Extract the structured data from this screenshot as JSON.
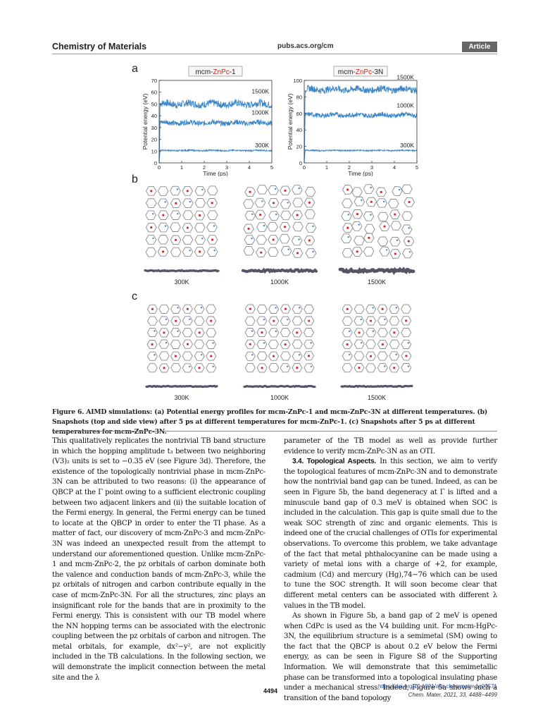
{
  "header": {
    "journal": "Chemistry of Materials",
    "url": "pubs.acs.org/cm",
    "badge": "Article"
  },
  "figure": {
    "panel_labels": [
      "a",
      "b",
      "c"
    ],
    "snapshot_labels": [
      "300K",
      "1000K",
      "1500K"
    ],
    "caption": "Figure 6. AIMD simulations: (a) Potential energy profiles for mcm-ZnPc-1 and mcm-ZnPc-3N at different temperatures. (b) Snapshots (top and side view) after 5 ps at different temperatures for mcm-ZnPc-1. (c) Snapshots after 5 ps at different temperatures for mcm-ZnPc-3N."
  },
  "chart_data": [
    {
      "type": "line",
      "title_parts": [
        "mcm-",
        "ZnPc",
        "-1"
      ],
      "xlabel": "Time (ps)",
      "ylabel": "Potential energy (eV)",
      "xlim": [
        0,
        5
      ],
      "ylim": [
        0,
        70
      ],
      "xticks": [
        "0",
        "1",
        "2",
        "3",
        "4",
        "5"
      ],
      "yticks": [
        "0",
        "10",
        "20",
        "30",
        "40",
        "50",
        "60",
        "70"
      ],
      "color": "#3b86c8",
      "series": [
        {
          "label": "1500K",
          "start": 0,
          "plateau": 50,
          "noise": 3.0
        },
        {
          "label": "1000K",
          "start": 0,
          "plateau": 34,
          "noise": 2.2
        },
        {
          "label": "300K",
          "start": 0,
          "plateau": 10.5,
          "noise": 0.6
        }
      ]
    },
    {
      "type": "line",
      "title_parts": [
        "mcm-",
        "ZnPc",
        "-3N"
      ],
      "xlabel": "Time (ps)",
      "ylabel": "Potential energy (eV)",
      "xlim": [
        0,
        5
      ],
      "ylim": [
        0,
        100
      ],
      "xticks": [
        "0",
        "1",
        "2",
        "3",
        "4",
        "5"
      ],
      "yticks": [
        "0",
        "20",
        "40",
        "60",
        "80",
        "100"
      ],
      "color": "#3b86c8",
      "series": [
        {
          "label": "1500K",
          "start": 0,
          "plateau": 89,
          "noise": 4.0
        },
        {
          "label": "1000K",
          "start": 0,
          "plateau": 58,
          "noise": 2.8
        },
        {
          "label": "300K",
          "start": 0,
          "plateau": 15,
          "noise": 0.8
        }
      ]
    }
  ],
  "body": {
    "left": [
      "This qualitatively replicates the nontrivial TB band structure in which the hopping amplitude t₃ between two neighboring (V3)₂ units is set to −0.35 eV (see Figure 3d). Therefore, the existence of the topologically nontrivial phase in mcm-ZnPc-3N can be attributed to two reasons: (i) the appearance of QBCP at the Γ point owing to a sufficient electronic coupling between two adjacent linkers and (ii) the suitable location of the Fermi energy. In general, the Fermi energy can be tuned to locate at the QBCP in order to enter the TI phase. As a matter of fact, our discovery of mcm-ZnPc-3 and mcm-ZnPc-3N was indeed an unexpected result from the attempt to understand our aforementioned question. Unlike mcm-ZnPc-1 and mcm-ZnPc-2, the pz orbitals of carbon dominate both the valence and conduction bands of mcm-ZnPc-3, while the pz orbitals of nitrogen and carbon contribute equally in the case of mcm-ZnPc-3N. For all the structures, zinc plays an insignificant role for the bands that are in proximity to the Fermi energy. This is consistent with our TB model where the NN hopping terms can be associated with the electronic coupling between the pz orbitals of carbon and nitrogen. The metal orbitals, for example, dx²−y², are not explicitly included in the TB calculations. In the following section, we will demonstrate the implicit connection between the metal site and the λ"
    ],
    "right_p1": "parameter of the TB model as well as provide further evidence to verify mcm-ZnPc-3N as an OTI.",
    "right_heading": "3.4. Topological Aspects.",
    "right_p2": "In this section, we aim to verify the topological features of mcm-ZnPc-3N and to demonstrate how the nontrivial band gap can be tuned. Indeed, as can be seen in Figure 5b, the band degeneracy at Γ is lifted and a minuscule band gap of 0.3 meV is obtained when SOC is included in the calculation. This gap is quite small due to the weak SOC strength of zinc and organic elements. This is indeed one of the crucial challenges of OTIs for experimental observations. To overcome this problem, we take advantage of the fact that metal phthalocyanine can be made using a variety of metal ions with a charge of +2, for example, cadmium (Cd) and mercury (Hg),74−76 which can be used to tune the SOC strength. It will soon become clear that different metal centers can be associated with different λ values in the TB model.",
    "right_p3": "As shown in Figure 5b, a band gap of 2 meV is opened when CdPc is used as the V4 building unit. For mcm-HgPc-3N, the equilibrium structure is a semimetal (SM) owing to the fact that the QBCP is about 0.2 eV below the Fermi energy, as can be seen in Figure S8 of the Supporting Information. We will demonstrate that this semimetallic phase can be transformed into a topological insulating phase under a mechanical stress. Indeed, Figure 5a shows such a transition of the band topology"
  },
  "footer": {
    "page": "4494",
    "doi": "https://doi.org/10.1021/acs.chemmater.1c00571",
    "citation": "Chem. Mater. 2021, 33, 4488−4499"
  }
}
